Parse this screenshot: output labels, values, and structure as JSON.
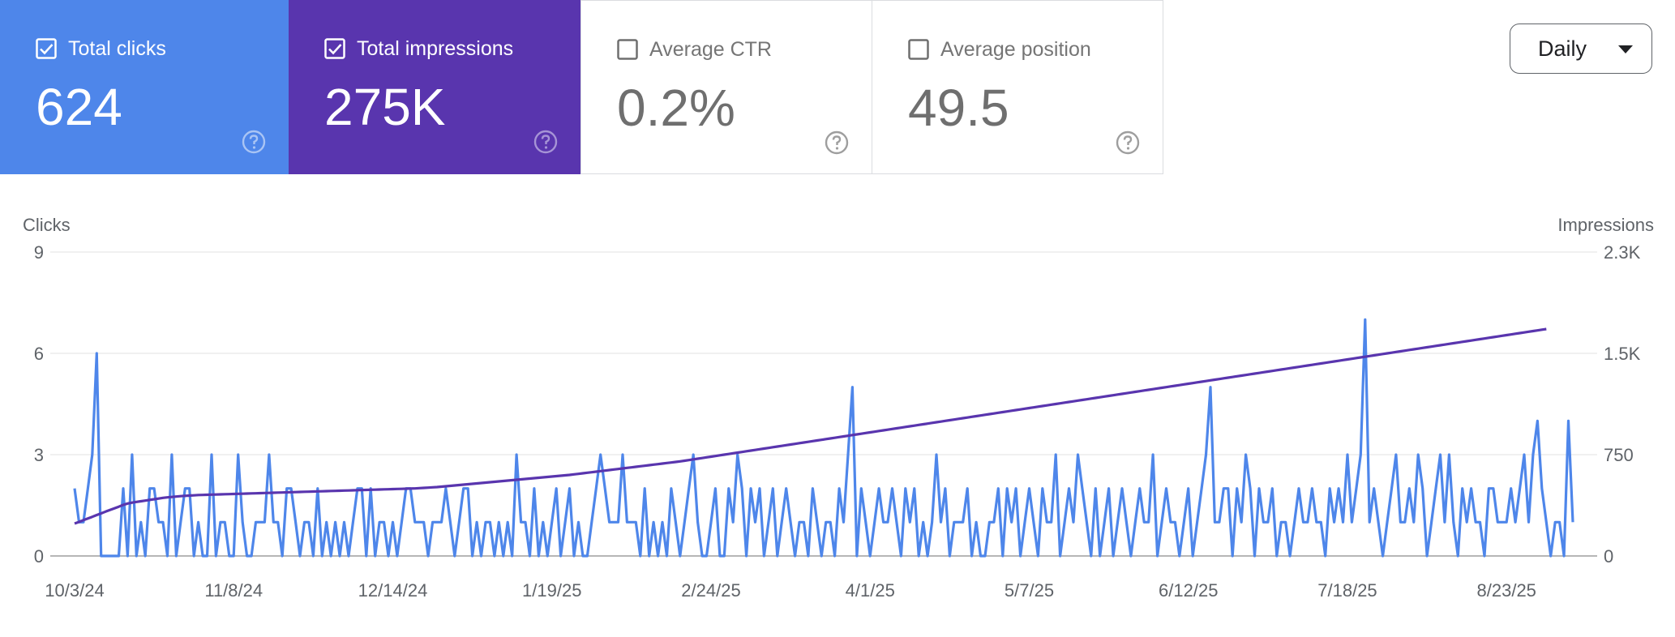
{
  "metrics": {
    "clicks": {
      "label": "Total clicks",
      "value": "624",
      "checked": true
    },
    "impressions": {
      "label": "Total impressions",
      "value": "275K",
      "checked": true
    },
    "ctr": {
      "label": "Average CTR",
      "value": "0.2%",
      "checked": false
    },
    "position": {
      "label": "Average position",
      "value": "49.5",
      "checked": false
    }
  },
  "granularity": {
    "selected": "Daily"
  },
  "colors": {
    "clicks": "#4e86ea",
    "impressions": "#5935ae",
    "grid": "#e6e6e6",
    "axis_text": "#5f6368"
  },
  "chart_data": {
    "type": "line",
    "left_axis": {
      "title": "Clicks",
      "range": [
        0,
        9
      ],
      "ticks": [
        {
          "value": 0,
          "label": "0"
        },
        {
          "value": 3,
          "label": "3"
        },
        {
          "value": 6,
          "label": "6"
        },
        {
          "value": 9,
          "label": "9"
        }
      ]
    },
    "right_axis": {
      "title": "Impressions",
      "range": [
        0,
        2250
      ],
      "ticks": [
        {
          "value": 0,
          "label": "0"
        },
        {
          "value": 750,
          "label": "750"
        },
        {
          "value": 1500,
          "label": "1.5K"
        },
        {
          "value": 2250,
          "label": "2.3K"
        }
      ]
    },
    "x_start": "10/3/24",
    "x_end": "8/28/25",
    "x_ticks": [
      {
        "day": 0,
        "label": "10/3/24"
      },
      {
        "day": 36,
        "label": "11/8/24"
      },
      {
        "day": 72,
        "label": "12/14/24"
      },
      {
        "day": 108,
        "label": "1/19/25"
      },
      {
        "day": 144,
        "label": "2/24/25"
      },
      {
        "day": 180,
        "label": "4/1/25"
      },
      {
        "day": 216,
        "label": "5/7/25"
      },
      {
        "day": 252,
        "label": "6/12/25"
      },
      {
        "day": 288,
        "label": "7/18/25"
      },
      {
        "day": 324,
        "label": "8/23/25"
      }
    ],
    "series": [
      {
        "name": "Clicks",
        "axis": "left",
        "values": [
          2,
          1,
          1,
          2,
          3,
          6,
          0,
          0,
          0,
          0,
          0,
          2,
          0,
          3,
          0,
          1,
          0,
          2,
          2,
          1,
          1,
          0,
          3,
          0,
          1,
          2,
          2,
          0,
          1,
          0,
          0,
          3,
          0,
          1,
          1,
          0,
          0,
          3,
          1,
          0,
          0,
          1,
          1,
          1,
          3,
          1,
          1,
          0,
          2,
          2,
          1,
          0,
          1,
          1,
          0,
          2,
          0,
          1,
          0,
          1,
          0,
          1,
          0,
          1,
          2,
          2,
          0,
          2,
          0,
          1,
          1,
          0,
          1,
          0,
          1,
          2,
          2,
          1,
          1,
          1,
          0,
          1,
          1,
          1,
          2,
          1,
          0,
          1,
          2,
          2,
          0,
          1,
          0,
          1,
          1,
          0,
          1,
          0,
          1,
          0,
          3,
          1,
          1,
          0,
          2,
          0,
          1,
          0,
          1,
          2,
          0,
          1,
          2,
          0,
          1,
          0,
          0,
          1,
          2,
          3,
          2,
          1,
          1,
          1,
          3,
          1,
          1,
          1,
          0,
          2,
          0,
          1,
          0,
          1,
          0,
          2,
          1,
          0,
          1,
          2,
          3,
          1,
          0,
          0,
          1,
          2,
          0,
          0,
          2,
          1,
          3,
          2,
          0,
          2,
          1,
          2,
          0,
          1,
          2,
          0,
          1,
          2,
          1,
          0,
          1,
          1,
          0,
          2,
          1,
          0,
          1,
          1,
          0,
          2,
          1,
          3,
          5,
          0,
          2,
          1,
          0,
          1,
          2,
          1,
          1,
          2,
          1,
          0,
          2,
          1,
          2,
          0,
          1,
          0,
          1,
          3,
          1,
          2,
          0,
          1,
          1,
          1,
          2,
          0,
          1,
          0,
          0,
          1,
          1,
          2,
          0,
          2,
          1,
          2,
          0,
          1,
          2,
          1,
          0,
          2,
          1,
          1,
          3,
          0,
          1,
          2,
          1,
          3,
          2,
          1,
          0,
          2,
          0,
          1,
          2,
          0,
          1,
          2,
          1,
          0,
          1,
          2,
          1,
          1,
          3,
          0,
          1,
          2,
          1,
          1,
          0,
          1,
          2,
          0,
          1,
          2,
          3,
          5,
          1,
          1,
          2,
          2,
          0,
          2,
          1,
          3,
          2,
          0,
          2,
          1,
          1,
          2,
          0,
          1,
          1,
          0,
          1,
          2,
          1,
          1,
          2,
          1,
          1,
          0,
          2,
          1,
          2,
          1,
          3,
          1,
          2,
          3,
          7,
          1,
          2,
          1,
          0,
          1,
          2,
          3,
          1,
          1,
          2,
          1,
          3,
          2,
          0,
          1,
          2,
          3,
          1,
          3,
          1,
          0,
          2,
          1,
          2,
          1,
          1,
          0,
          2,
          2,
          1,
          1,
          1,
          2,
          1,
          2,
          3,
          1,
          3,
          4,
          2,
          1,
          0,
          1,
          1,
          0,
          4,
          1
        ]
      },
      {
        "name": "Impressions",
        "axis": "right",
        "values": [
          240,
          252,
          265,
          278,
          290,
          303,
          315,
          328,
          340,
          353,
          365,
          378,
          388,
          395,
          400,
          405,
          410,
          415,
          420,
          425,
          430,
          434,
          437,
          440,
          443,
          445,
          447,
          449,
          451,
          452,
          453,
          454,
          455,
          456,
          457,
          458,
          459,
          460,
          461,
          462,
          463,
          464,
          465,
          466,
          467,
          468,
          469,
          470,
          471,
          472,
          473,
          474,
          475,
          476,
          477,
          478,
          479,
          480,
          481,
          482,
          483,
          484,
          485,
          486,
          487,
          488,
          489,
          490,
          491,
          492,
          493,
          494,
          495,
          496,
          497,
          498,
          499,
          500,
          502,
          504,
          506,
          508,
          510,
          513,
          516,
          519,
          522,
          525,
          528,
          531,
          534,
          537,
          540,
          543,
          546,
          549,
          552,
          555,
          558,
          561,
          564,
          567,
          570,
          573,
          576,
          579,
          582,
          585,
          588,
          591,
          594,
          597,
          600,
          604,
          608,
          612,
          616,
          620,
          624,
          628,
          632,
          636,
          640,
          644,
          648,
          652,
          656,
          660,
          664,
          668,
          672,
          676,
          680,
          684,
          688,
          692,
          696,
          700,
          705,
          710,
          715,
          720,
          725,
          730,
          735,
          740,
          745,
          750,
          755,
          760,
          765,
          770,
          775,
          780,
          785,
          790,
          795,
          800,
          805,
          810,
          815,
          820,
          825,
          830,
          835,
          840,
          845,
          850,
          855,
          860,
          865,
          870,
          875,
          880,
          885,
          890,
          895,
          900,
          905,
          910,
          915,
          920,
          925,
          930,
          935,
          940,
          945,
          950,
          955,
          960,
          965,
          970,
          975,
          980,
          985,
          990,
          995,
          1000,
          1005,
          1010,
          1015,
          1020,
          1025,
          1030,
          1035,
          1040,
          1045,
          1050,
          1055,
          1060,
          1065,
          1070,
          1075,
          1080,
          1085,
          1090,
          1095,
          1100,
          1105,
          1110,
          1115,
          1120,
          1125,
          1130,
          1135,
          1140,
          1145,
          1150,
          1155,
          1160,
          1165,
          1170,
          1175,
          1180,
          1185,
          1190,
          1195,
          1200,
          1205,
          1210,
          1215,
          1220,
          1225,
          1230,
          1235,
          1240,
          1245,
          1250,
          1255,
          1260,
          1265,
          1270,
          1275,
          1280,
          1285,
          1290,
          1295,
          1300,
          1305,
          1310,
          1315,
          1320,
          1325,
          1330,
          1335,
          1340,
          1345,
          1350,
          1355,
          1360,
          1365,
          1370,
          1375,
          1380,
          1385,
          1390,
          1395,
          1400,
          1405,
          1410,
          1415,
          1420,
          1425,
          1430,
          1435,
          1440,
          1445,
          1450,
          1455,
          1460,
          1465,
          1470,
          1475,
          1480,
          1485,
          1490,
          1495,
          1500,
          1505,
          1510,
          1515,
          1520,
          1525,
          1530,
          1535,
          1540,
          1545,
          1550,
          1555,
          1560,
          1565,
          1570,
          1575,
          1580,
          1585,
          1590,
          1595,
          1600,
          1605,
          1610,
          1615,
          1620,
          1625,
          1630,
          1635,
          1640,
          1645,
          1650,
          1655,
          1660,
          1665,
          1670,
          1675,
          1680
        ]
      }
    ]
  }
}
